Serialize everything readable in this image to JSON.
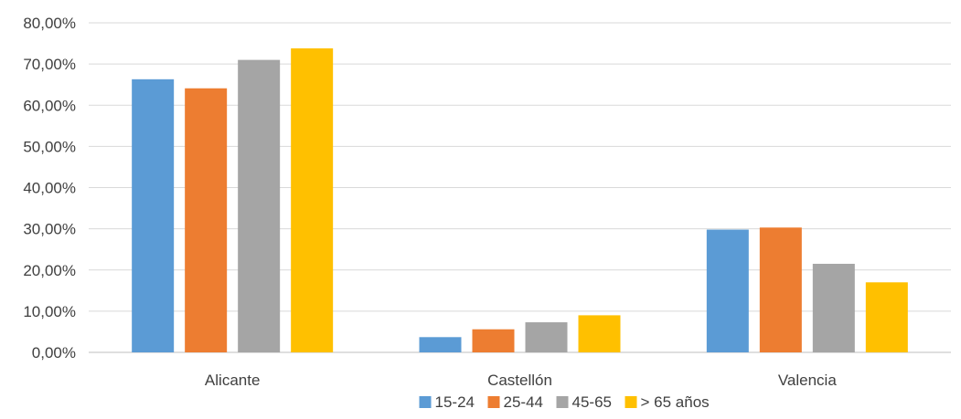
{
  "chart_data": {
    "type": "bar",
    "title": "",
    "categories": [
      "Alicante",
      "Castellón",
      "Valencia"
    ],
    "series": [
      {
        "name": "15-24",
        "color": "#5B9BD5",
        "values": [
          66.3,
          3.7,
          29.8
        ]
      },
      {
        "name": "25-44",
        "color": "#ED7D31",
        "values": [
          64.1,
          5.6,
          30.3
        ]
      },
      {
        "name": "45-65",
        "color": "#A5A5A5",
        "values": [
          71.0,
          7.3,
          21.5
        ]
      },
      {
        "name": "> 65 años",
        "color": "#FFC000",
        "values": [
          73.8,
          9.0,
          17.0
        ]
      }
    ],
    "ylim": [
      0,
      80
    ],
    "yticks": [
      "0,00%",
      "10,00%",
      "20,00%",
      "30,00%",
      "40,00%",
      "50,00%",
      "60,00%",
      "70,00%",
      "80,00%"
    ],
    "grid": true,
    "legend": "bottom",
    "xlabel": "",
    "ylabel": ""
  }
}
